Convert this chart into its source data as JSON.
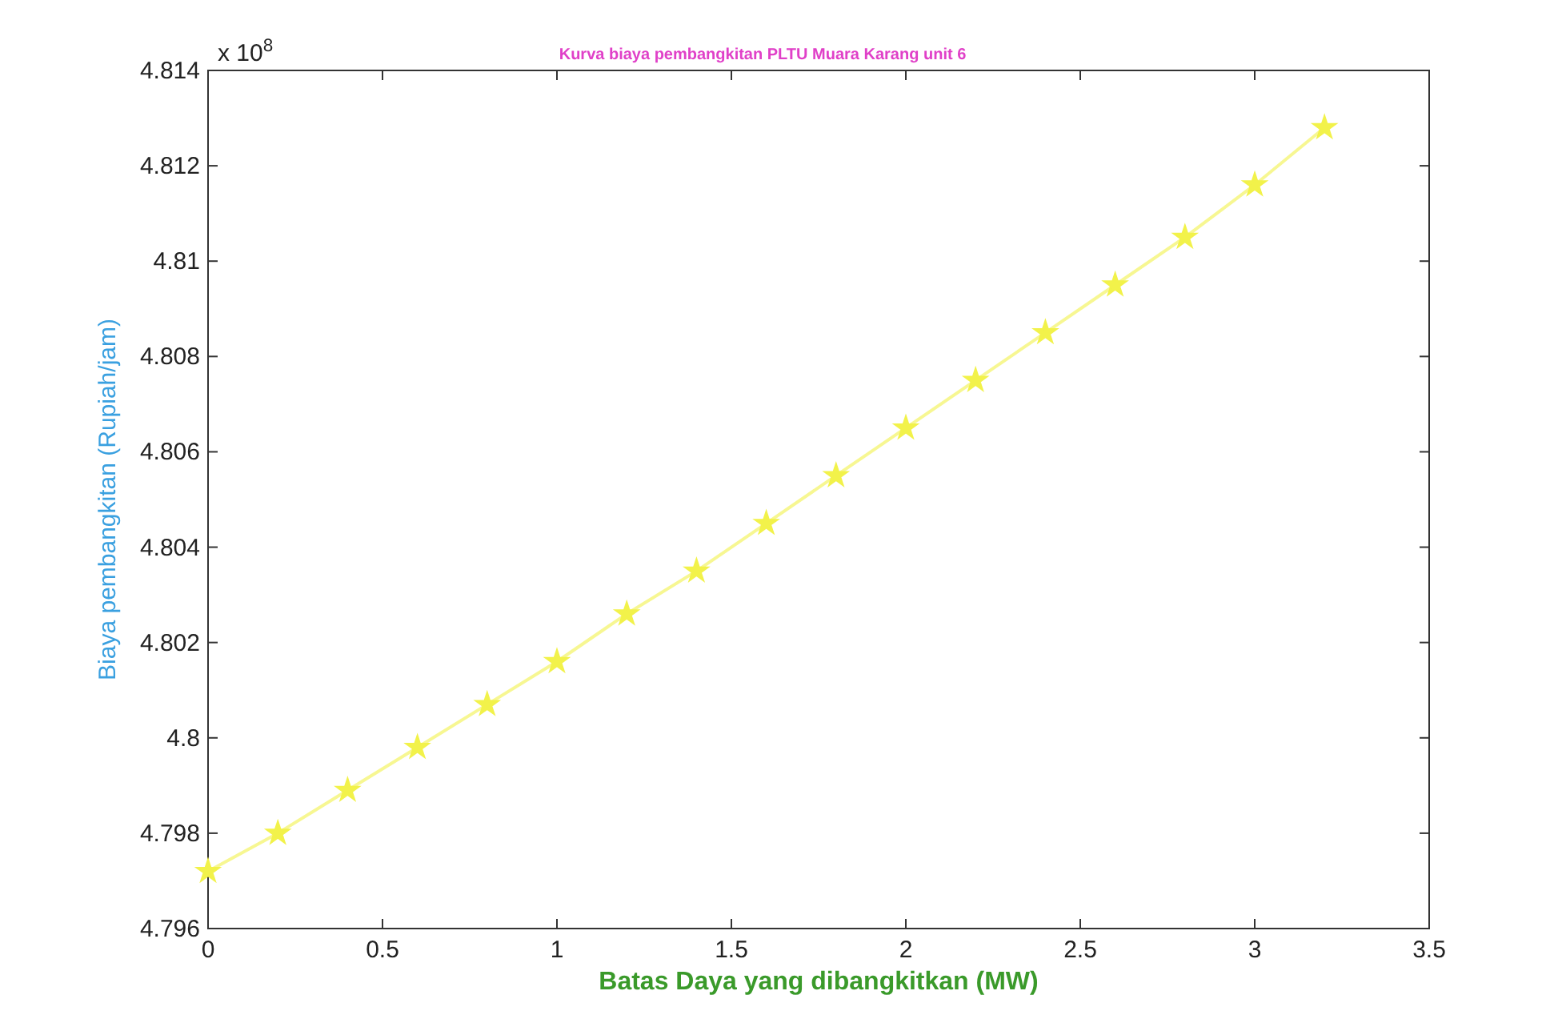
{
  "chart_data": {
    "type": "line",
    "title": "Kurva biaya pembangkitan PLTU Muara Karang unit 6",
    "xlabel": "Batas Daya yang dibangkitkan (MW)",
    "ylabel": "Biaya pembangkitan (Rupiah/jam)",
    "annotations": [
      "x 10$^{8}$"
    ],
    "x": [
      0,
      0.2,
      0.4,
      0.6,
      0.8,
      1,
      1.2,
      1.4,
      1.6,
      1.8,
      2,
      2.2,
      2.4,
      2.6,
      2.8,
      3,
      3.2
    ],
    "series": [
      {
        "color": "#f2f24a",
        "values": [
          4.7972,
          4.798,
          4.7989,
          4.7998,
          4.8007,
          4.8016,
          4.8026,
          4.8035,
          4.8045,
          4.8055,
          4.8065,
          4.8075,
          4.8085,
          4.8095,
          4.8105,
          4.8116,
          4.8128
        ]
      }
    ],
    "xlim": [
      0,
      3.5
    ],
    "xticks": [
      0,
      0.5,
      1,
      1.5,
      2,
      2.5,
      3,
      3.5
    ],
    "ylim": [
      4.796,
      4.814
    ],
    "yticks": [
      4.796,
      4.798,
      4.8,
      4.802,
      4.804,
      4.806,
      4.808,
      4.81,
      4.812,
      4.814
    ],
    "grid": false,
    "marker": "star",
    "line_style": "solid"
  }
}
